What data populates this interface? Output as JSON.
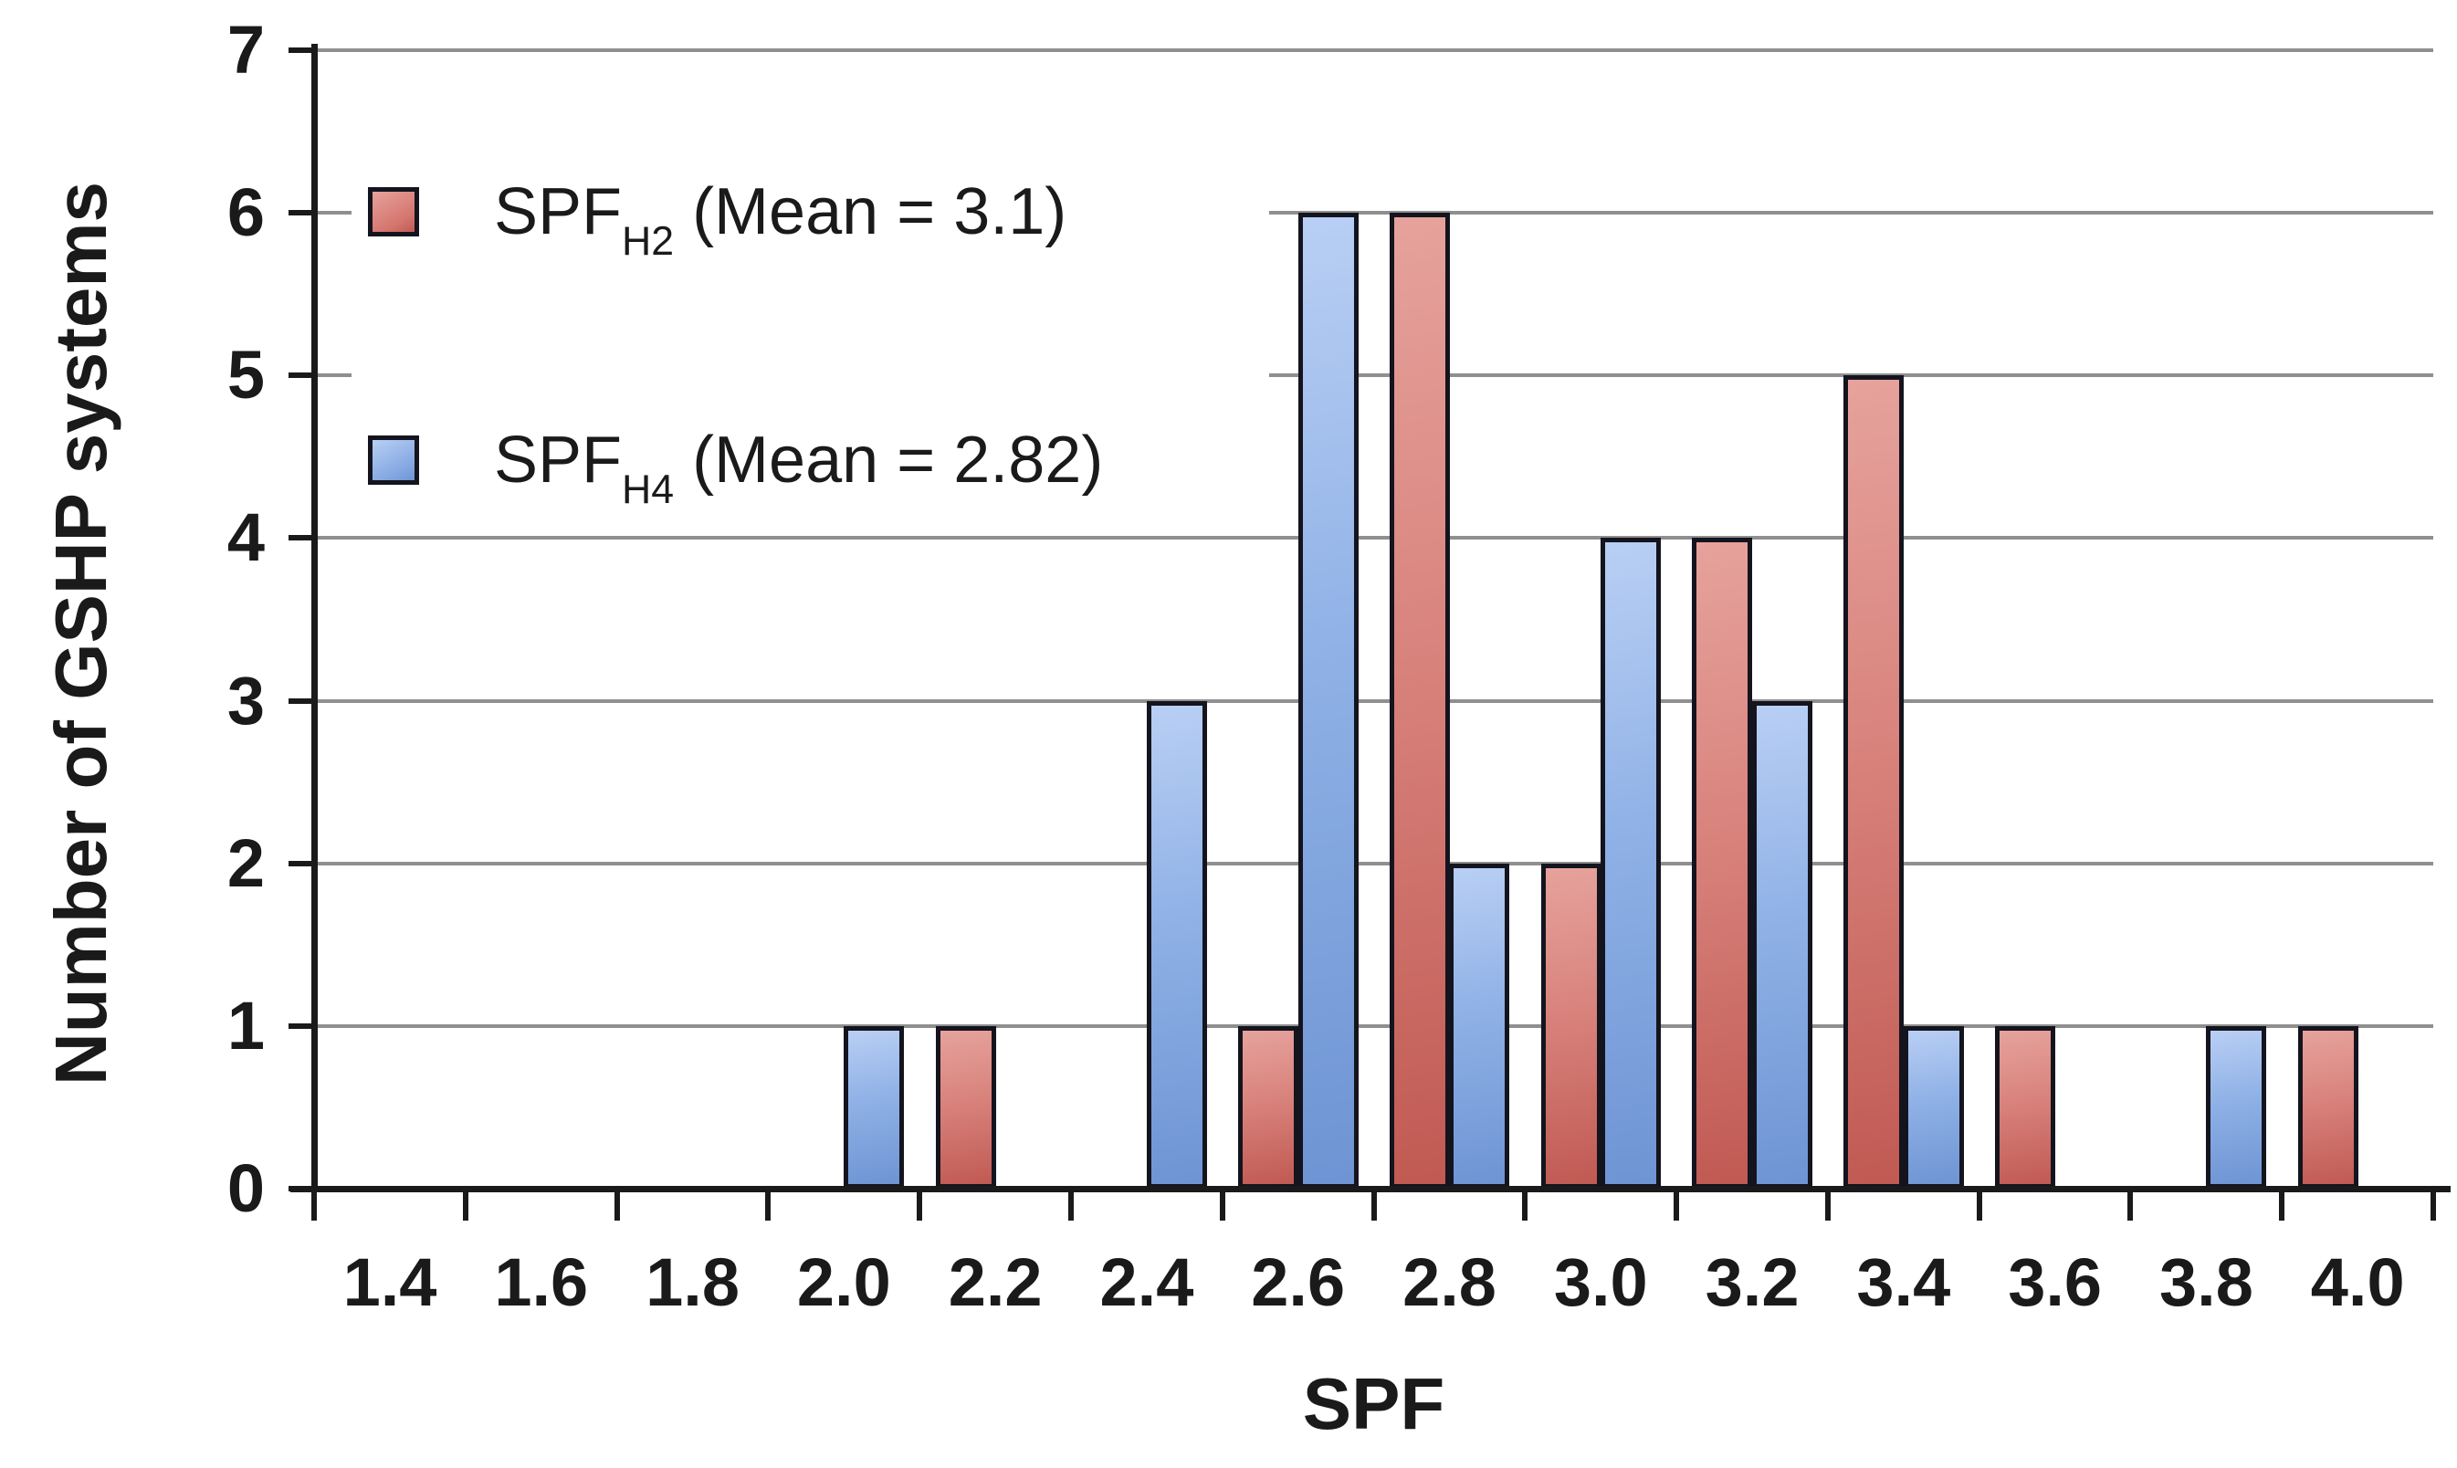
{
  "chart_data": {
    "type": "bar",
    "title": "",
    "xlabel": "SPF",
    "ylabel": "Number of GSHP systems",
    "ylim": [
      0,
      7
    ],
    "yticks": [
      0,
      1,
      2,
      3,
      4,
      5,
      6,
      7
    ],
    "grid": "horizontal",
    "legend_position": "top-left-inside",
    "bin_width": 0.2,
    "categories": [
      "1.4",
      "1.6",
      "1.8",
      "2.0",
      "2.2",
      "2.4",
      "2.6",
      "2.8",
      "3.0",
      "3.2",
      "3.4",
      "3.6",
      "3.8",
      "4.0"
    ],
    "series": [
      {
        "name": "SPF_H2",
        "legend": {
          "base": "SPF",
          "sub": "H2",
          "rest": " (Mean = 3.1)"
        },
        "mean": 3.1,
        "color": "#C05A53",
        "color_light": "#E6A29C",
        "values": [
          0,
          0,
          0,
          0,
          1,
          0,
          1,
          6,
          2,
          4,
          5,
          1,
          0,
          1
        ]
      },
      {
        "name": "SPF_H4",
        "legend": {
          "base": "SPF",
          "sub": "H4",
          "rest": " (Mean = 2.82)"
        },
        "mean": 2.82,
        "color": "#6E94D3",
        "color_light": "#B9CFF4",
        "values": [
          0,
          0,
          0,
          1,
          0,
          3,
          6,
          2,
          4,
          3,
          1,
          0,
          1,
          0
        ]
      }
    ],
    "colors": {
      "grid": "#8F8F8F",
      "axis": "#1A1A1A",
      "bar_border": "#14141E",
      "text": "#1A1A1A",
      "background": "#FFFFFF"
    }
  }
}
